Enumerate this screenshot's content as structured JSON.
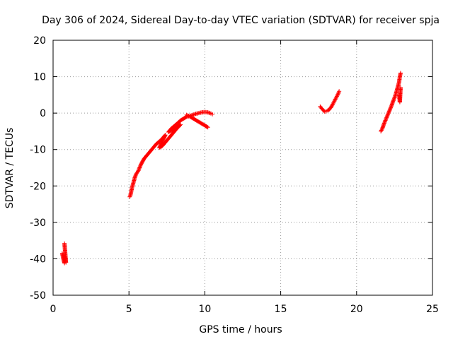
{
  "chart_data": {
    "type": "scatter",
    "title": "Day 306 of 2024, Sidereal Day-to-day VTEC variation (SDTVAR) for receiver spja",
    "xlabel": "GPS time / hours",
    "ylabel": "SDTVAR / TECUs",
    "xlim": [
      0,
      25
    ],
    "ylim": [
      -50,
      20
    ],
    "xticks": [
      0,
      5,
      10,
      15,
      20,
      25
    ],
    "yticks": [
      -50,
      -40,
      -30,
      -20,
      -10,
      0,
      10,
      20
    ],
    "grid": true,
    "marker": "+",
    "color": "#ff0000",
    "series": [
      {
        "points": [
          [
            0.6,
            -38.5
          ],
          [
            0.65,
            -39.5
          ],
          [
            0.7,
            -40.5
          ],
          [
            0.75,
            -41.2
          ],
          [
            0.7,
            -39.0
          ],
          [
            0.8,
            -40.0
          ],
          [
            0.85,
            -41.0
          ],
          [
            0.75,
            -35.8
          ],
          [
            5.05,
            -23.0
          ],
          [
            5.1,
            -22.5
          ],
          [
            5.15,
            -21.5
          ],
          [
            5.2,
            -20.5
          ],
          [
            5.3,
            -19.0
          ],
          [
            5.4,
            -17.5
          ],
          [
            5.5,
            -16.5
          ],
          [
            5.6,
            -16.0
          ],
          [
            5.7,
            -15.0
          ],
          [
            5.8,
            -14.0
          ],
          [
            6.0,
            -12.5
          ],
          [
            6.2,
            -11.5
          ],
          [
            6.4,
            -10.5
          ],
          [
            6.6,
            -9.5
          ],
          [
            6.8,
            -8.5
          ],
          [
            7.0,
            -7.8
          ],
          [
            7.2,
            -7.0
          ],
          [
            7.4,
            -6.0
          ],
          [
            7.0,
            -9.5
          ],
          [
            7.2,
            -9.0
          ],
          [
            7.4,
            -8.0
          ],
          [
            7.6,
            -7.0
          ],
          [
            7.8,
            -6.0
          ],
          [
            8.0,
            -5.0
          ],
          [
            8.2,
            -4.0
          ],
          [
            8.4,
            -3.2
          ],
          [
            7.6,
            -5.2
          ],
          [
            7.8,
            -4.2
          ],
          [
            8.0,
            -3.5
          ],
          [
            8.2,
            -2.8
          ],
          [
            8.4,
            -2.0
          ],
          [
            8.6,
            -1.5
          ],
          [
            8.8,
            -1.0
          ],
          [
            9.0,
            -0.8
          ],
          [
            9.2,
            -0.5
          ],
          [
            9.4,
            -0.2
          ],
          [
            9.6,
            0.0
          ],
          [
            9.8,
            0.2
          ],
          [
            10.0,
            0.3
          ],
          [
            10.2,
            0.2
          ],
          [
            10.4,
            -0.1
          ],
          [
            10.5,
            -0.3
          ],
          [
            8.8,
            -0.5
          ],
          [
            9.0,
            -0.9
          ],
          [
            9.2,
            -1.4
          ],
          [
            9.4,
            -1.9
          ],
          [
            9.6,
            -2.4
          ],
          [
            9.8,
            -2.9
          ],
          [
            10.0,
            -3.4
          ],
          [
            10.2,
            -3.9
          ],
          [
            17.6,
            1.8
          ],
          [
            17.7,
            1.3
          ],
          [
            17.8,
            0.8
          ],
          [
            17.9,
            0.4
          ],
          [
            18.0,
            0.5
          ],
          [
            18.1,
            0.7
          ],
          [
            18.2,
            1.0
          ],
          [
            18.3,
            1.5
          ],
          [
            18.4,
            2.2
          ],
          [
            18.5,
            3.0
          ],
          [
            18.6,
            3.8
          ],
          [
            18.7,
            4.6
          ],
          [
            18.8,
            5.4
          ],
          [
            18.85,
            6.0
          ],
          [
            21.6,
            -5.0
          ],
          [
            21.7,
            -4.2
          ],
          [
            21.8,
            -3.0
          ],
          [
            21.9,
            -2.0
          ],
          [
            22.0,
            -1.0
          ],
          [
            22.1,
            0.0
          ],
          [
            22.2,
            1.0
          ],
          [
            22.3,
            2.0
          ],
          [
            22.4,
            3.2
          ],
          [
            22.5,
            4.2
          ],
          [
            22.6,
            5.5
          ],
          [
            22.7,
            7.0
          ],
          [
            22.8,
            8.5
          ],
          [
            22.85,
            10.0
          ],
          [
            22.9,
            11.0
          ],
          [
            22.8,
            5.0
          ],
          [
            22.85,
            3.0
          ],
          [
            22.9,
            7.0
          ]
        ]
      }
    ]
  }
}
